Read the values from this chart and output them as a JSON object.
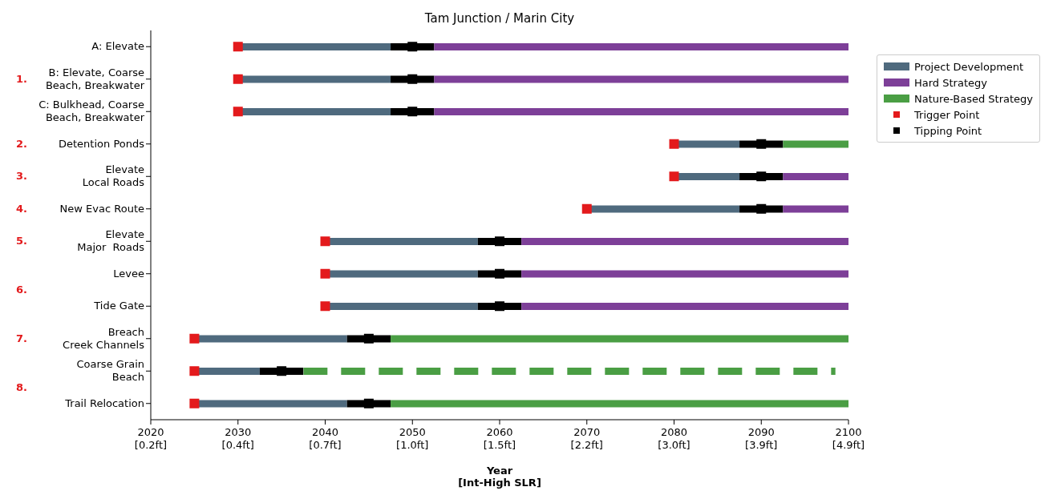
{
  "chart_data": {
    "type": "bar",
    "orientation": "horizontal",
    "title": "Tam Junction / Marin City",
    "xlabel": "Year\n[Int-High SLR]",
    "categories": [
      "A: Elevate",
      "B: Elevate, Coarse\nBeach, Breakwater",
      "C: Bulkhead, Coarse\nBeach, Breakwater",
      "Detention Ponds",
      "Elevate\nLocal Roads",
      "New Evac Route",
      "Elevate\nMajor  Roads",
      "Levee",
      "Tide Gate",
      "Breach\nCreek Channels",
      "Coarse Grain\nBeach",
      "Trail Relocation"
    ],
    "series": [
      {
        "name": "Project Development",
        "color": "#4f6a7e",
        "base": [
          2030,
          2030,
          2030,
          2080,
          2080,
          2070,
          2040,
          2040,
          2040,
          2025,
          2025,
          2025
        ],
        "values": [
          17.5,
          17.5,
          17.5,
          7.5,
          7.5,
          17.5,
          17.5,
          17.5,
          17.5,
          17.5,
          7.5,
          17.5
        ]
      },
      {
        "color": "#000000",
        "base": [
          2047.5,
          2047.5,
          2047.5,
          2087.5,
          2087.5,
          2087.5,
          2057.5,
          2057.5,
          2057.5,
          2042.5,
          2032.5,
          2042.5
        ],
        "values": [
          5,
          5,
          5,
          5,
          5,
          5,
          5,
          5,
          5,
          5,
          5,
          5
        ]
      },
      {
        "name": "Hard Strategy",
        "color": "#7d3f98",
        "base": [
          2052.5,
          2052.5,
          2052.5,
          null,
          2092.5,
          2092.5,
          2062.5,
          2062.5,
          2062.5,
          null,
          null,
          null
        ],
        "values": [
          47.5,
          47.5,
          47.5,
          null,
          7.5,
          7.5,
          37.5,
          37.5,
          37.5,
          null,
          null,
          null
        ]
      },
      {
        "name": "Nature-Based Strategy",
        "color": "#4a9e44",
        "base": [
          null,
          null,
          null,
          2092.5,
          null,
          null,
          null,
          null,
          null,
          2047.5,
          null,
          2047.5
        ],
        "values": [
          null,
          null,
          null,
          7.5,
          null,
          null,
          null,
          null,
          null,
          52.5,
          null,
          52.5
        ]
      },
      {
        "color": "#4a9e44",
        "line_style": "dashed",
        "base": [
          null,
          null,
          null,
          null,
          null,
          null,
          null,
          null,
          null,
          null,
          2037.5,
          null
        ],
        "values": [
          null,
          null,
          null,
          null,
          null,
          null,
          null,
          null,
          null,
          null,
          61,
          null
        ]
      },
      {
        "name": "Trigger Point",
        "type": "scatter",
        "color": "#e31a1c",
        "values": [
          2030,
          2030,
          2030,
          2080,
          2080,
          2070,
          2040,
          2040,
          2040,
          2025,
          2025,
          2025
        ]
      },
      {
        "name": "Tipping Point",
        "type": "scatter",
        "color": "#000000",
        "values": [
          2050,
          2050,
          2050,
          2090,
          2090,
          2090,
          2060,
          2060,
          2060,
          2045,
          2035,
          2045
        ]
      }
    ],
    "marker": "square",
    "xlim": [
      2020,
      2100
    ],
    "xticks": [
      2020,
      2030,
      2040,
      2050,
      2060,
      2070,
      2080,
      2090,
      2100
    ],
    "annotations": [
      "1.",
      "2.",
      "3.",
      "4.",
      "5.",
      "6.",
      "7.",
      "8.",
      "[0.2ft]",
      "[0.4ft]",
      "[0.7ft]",
      "[1.0ft]",
      "[1.5ft]",
      "[2.2ft]",
      "[3.0ft]",
      "[3.9ft]",
      "[4.9ft]"
    ],
    "legend": "right"
  }
}
